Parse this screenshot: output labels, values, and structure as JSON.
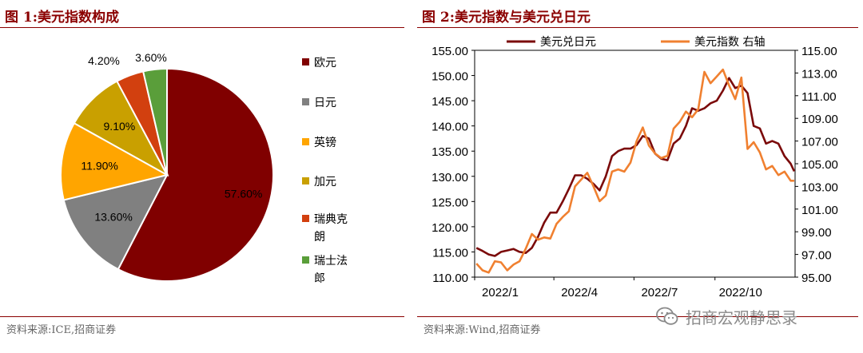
{
  "left": {
    "title": "图 1:美元指数构成",
    "source": "资料来源:ICE,招商证券",
    "chart_data": {
      "type": "pie",
      "title": "",
      "slices": [
        {
          "label": "欧元",
          "value": 57.6,
          "value_label": "57.60%",
          "color": "#800000"
        },
        {
          "label": "日元",
          "value": 13.6,
          "value_label": "13.60%",
          "color": "#808080"
        },
        {
          "label": "英镑",
          "value": 11.9,
          "value_label": "11.90%",
          "color": "#FFA500"
        },
        {
          "label": "加元",
          "value": 9.1,
          "value_label": "9.10%",
          "color": "#C9A000"
        },
        {
          "label": "瑞典克朗",
          "value": 4.2,
          "value_label": "4.20%",
          "color": "#D2400F"
        },
        {
          "label": "瑞士法郎",
          "value": 3.6,
          "value_label": "3.60%",
          "color": "#5A9E3A"
        }
      ],
      "legend_position": "right"
    }
  },
  "right": {
    "title": "图 2:美元指数与美元兑日元",
    "source": "资料来源:Wind,招商证券",
    "chart_data": {
      "type": "line",
      "title": "",
      "x_ticks": [
        "2022/1",
        "2022/4",
        "2022/7",
        "2022/10"
      ],
      "x_range": [
        "2022-01-01",
        "2022-12-31"
      ],
      "y_left": {
        "range": [
          110,
          155
        ],
        "ticks": [
          "110.00",
          "115.00",
          "120.00",
          "125.00",
          "130.00",
          "135.00",
          "140.00",
          "145.00",
          "150.00",
          "155.00"
        ]
      },
      "y_right": {
        "range": [
          95,
          115
        ],
        "ticks": [
          "95.00",
          "97.00",
          "99.00",
          "101.00",
          "103.00",
          "105.00",
          "107.00",
          "109.00",
          "111.00",
          "113.00",
          "115.00"
        ]
      },
      "legend_position": "top",
      "series": [
        {
          "name": "美元兑日元",
          "axis": "left",
          "color": "#7B0A0A",
          "points": [
            [
              "2022-01-03",
              115.8
            ],
            [
              "2022-01-10",
              115.2
            ],
            [
              "2022-01-17",
              114.5
            ],
            [
              "2022-01-24",
              114.2
            ],
            [
              "2022-01-31",
              115.0
            ],
            [
              "2022-02-07",
              115.3
            ],
            [
              "2022-02-14",
              115.6
            ],
            [
              "2022-02-21",
              115.0
            ],
            [
              "2022-02-28",
              114.8
            ],
            [
              "2022-03-07",
              115.8
            ],
            [
              "2022-03-14",
              118.0
            ],
            [
              "2022-03-21",
              120.8
            ],
            [
              "2022-03-28",
              122.8
            ],
            [
              "2022-04-04",
              122.8
            ],
            [
              "2022-04-11",
              125.0
            ],
            [
              "2022-04-18",
              127.5
            ],
            [
              "2022-04-25",
              130.2
            ],
            [
              "2022-05-02",
              130.2
            ],
            [
              "2022-05-09",
              129.5
            ],
            [
              "2022-05-16",
              128.5
            ],
            [
              "2022-05-23",
              127.2
            ],
            [
              "2022-05-30",
              130.0
            ],
            [
              "2022-06-06",
              134.0
            ],
            [
              "2022-06-13",
              135.0
            ],
            [
              "2022-06-20",
              135.5
            ],
            [
              "2022-06-27",
              135.5
            ],
            [
              "2022-07-04",
              136.2
            ],
            [
              "2022-07-11",
              138.0
            ],
            [
              "2022-07-18",
              137.5
            ],
            [
              "2022-07-25",
              134.5
            ],
            [
              "2022-08-01",
              133.5
            ],
            [
              "2022-08-08",
              133.2
            ],
            [
              "2022-08-15",
              136.5
            ],
            [
              "2022-08-22",
              137.5
            ],
            [
              "2022-08-29",
              140.0
            ],
            [
              "2022-09-05",
              143.5
            ],
            [
              "2022-09-12",
              143.0
            ],
            [
              "2022-09-19",
              143.5
            ],
            [
              "2022-09-26",
              144.5
            ],
            [
              "2022-10-03",
              145.0
            ],
            [
              "2022-10-10",
              147.0
            ],
            [
              "2022-10-17",
              149.5
            ],
            [
              "2022-10-24",
              147.5
            ],
            [
              "2022-10-31",
              148.0
            ],
            [
              "2022-11-07",
              146.5
            ],
            [
              "2022-11-14",
              140.0
            ],
            [
              "2022-11-21",
              139.5
            ],
            [
              "2022-11-28",
              136.5
            ],
            [
              "2022-12-05",
              137.0
            ],
            [
              "2022-12-12",
              136.5
            ],
            [
              "2022-12-19",
              134.0
            ],
            [
              "2022-12-26",
              132.5
            ],
            [
              "2022-12-30",
              131.0
            ]
          ]
        },
        {
          "name": "美元指数 右轴",
          "axis": "right",
          "color": "#F08030",
          "points": [
            [
              "2022-01-03",
              96.2
            ],
            [
              "2022-01-10",
              95.6
            ],
            [
              "2022-01-17",
              95.4
            ],
            [
              "2022-01-24",
              96.4
            ],
            [
              "2022-01-31",
              96.3
            ],
            [
              "2022-02-07",
              95.6
            ],
            [
              "2022-02-14",
              96.1
            ],
            [
              "2022-02-21",
              96.4
            ],
            [
              "2022-02-28",
              97.5
            ],
            [
              "2022-03-07",
              98.8
            ],
            [
              "2022-03-14",
              98.3
            ],
            [
              "2022-03-21",
              98.5
            ],
            [
              "2022-03-28",
              98.4
            ],
            [
              "2022-04-04",
              99.7
            ],
            [
              "2022-04-11",
              100.3
            ],
            [
              "2022-04-18",
              100.8
            ],
            [
              "2022-04-25",
              103.0
            ],
            [
              "2022-05-02",
              103.6
            ],
            [
              "2022-05-09",
              104.2
            ],
            [
              "2022-05-16",
              103.0
            ],
            [
              "2022-05-23",
              101.7
            ],
            [
              "2022-05-30",
              102.2
            ],
            [
              "2022-06-06",
              104.3
            ],
            [
              "2022-06-13",
              104.5
            ],
            [
              "2022-06-20",
              104.3
            ],
            [
              "2022-06-27",
              105.1
            ],
            [
              "2022-07-04",
              107.0
            ],
            [
              "2022-07-11",
              108.2
            ],
            [
              "2022-07-18",
              106.6
            ],
            [
              "2022-07-25",
              105.9
            ],
            [
              "2022-08-01",
              105.5
            ],
            [
              "2022-08-08",
              105.7
            ],
            [
              "2022-08-15",
              108.1
            ],
            [
              "2022-08-22",
              108.7
            ],
            [
              "2022-08-29",
              109.6
            ],
            [
              "2022-09-05",
              109.1
            ],
            [
              "2022-09-12",
              109.8
            ],
            [
              "2022-09-19",
              113.1
            ],
            [
              "2022-09-26",
              112.1
            ],
            [
              "2022-10-03",
              112.7
            ],
            [
              "2022-10-10",
              113.3
            ],
            [
              "2022-10-17",
              111.9
            ],
            [
              "2022-10-24",
              110.7
            ],
            [
              "2022-10-31",
              112.6
            ],
            [
              "2022-11-07",
              106.3
            ],
            [
              "2022-11-14",
              106.9
            ],
            [
              "2022-11-21",
              106.0
            ],
            [
              "2022-11-28",
              104.5
            ],
            [
              "2022-12-05",
              104.8
            ],
            [
              "2022-12-12",
              104.0
            ],
            [
              "2022-12-19",
              104.3
            ],
            [
              "2022-12-26",
              103.5
            ],
            [
              "2022-12-30",
              103.5
            ]
          ]
        }
      ]
    }
  },
  "watermark": {
    "text": "招商宏观静思录",
    "icon": "wechat-icon"
  }
}
